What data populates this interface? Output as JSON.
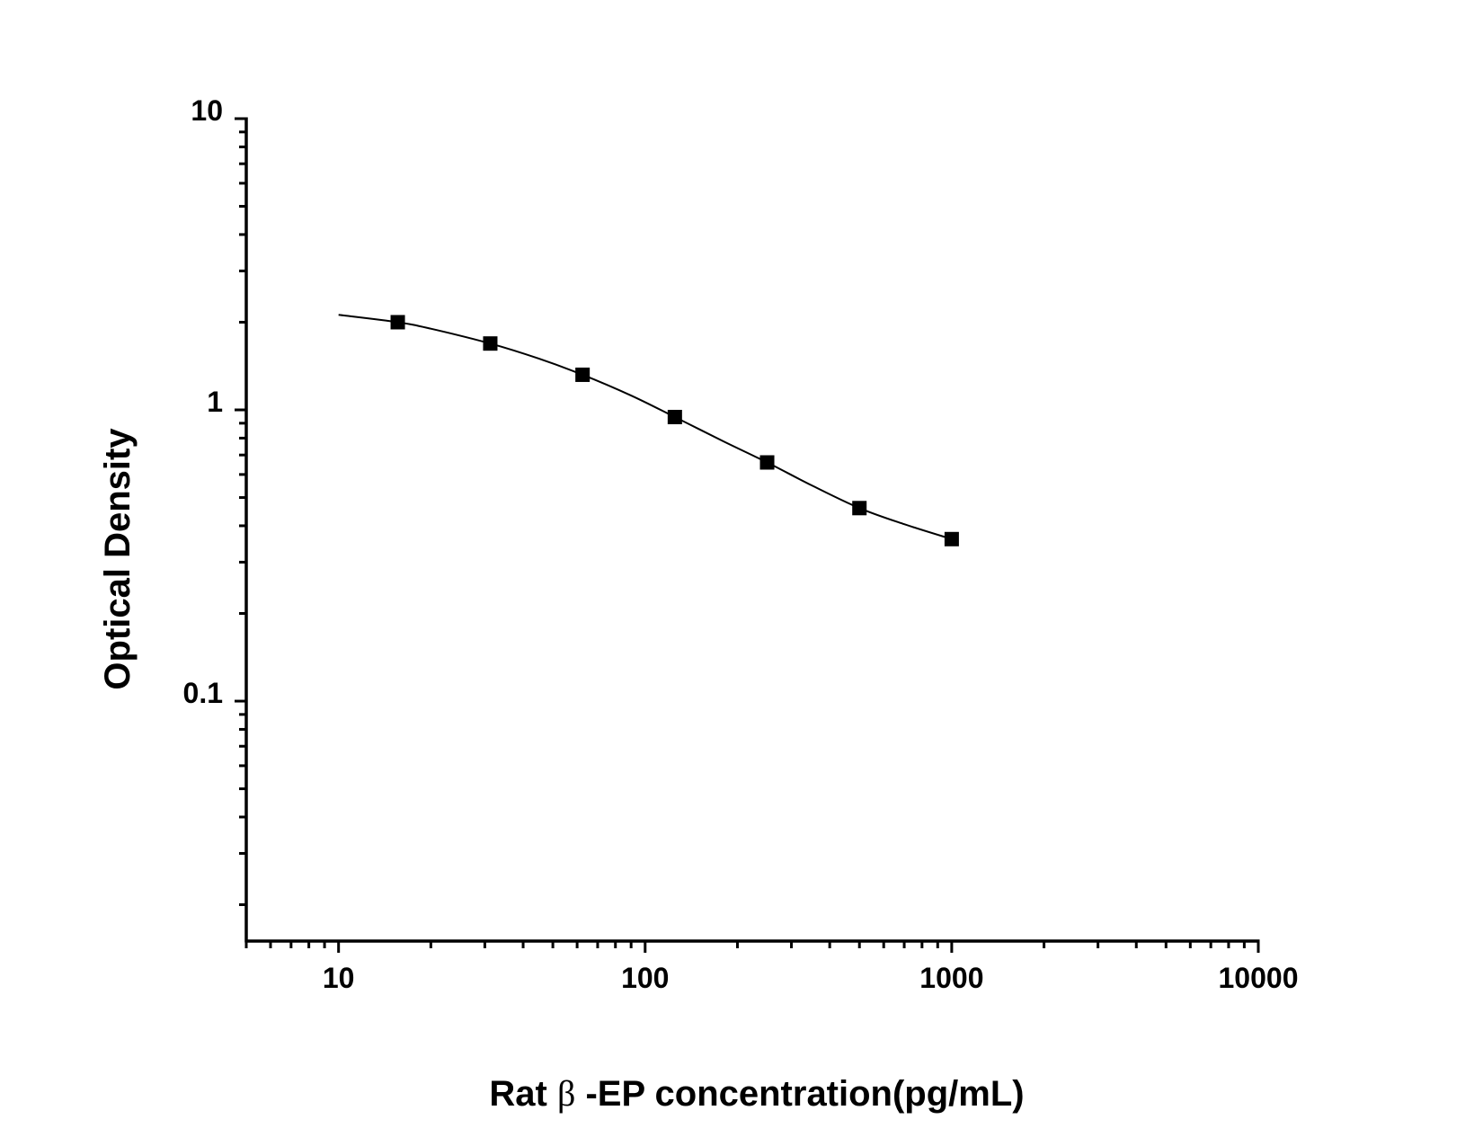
{
  "chart_data": {
    "type": "scatter",
    "title": "",
    "xlabel": "Rat β -EP concentration(pg/mL)",
    "xlabel_parts": {
      "prefix": "Rat ",
      "symbol": "β",
      "suffix": " -EP concentration(pg/mL)"
    },
    "ylabel": "Optical Density",
    "xscale": "log",
    "yscale": "log",
    "xlim": [
      5,
      10000
    ],
    "ylim": [
      0.015,
      10
    ],
    "x_ticks": [
      10,
      100,
      1000,
      10000
    ],
    "x_tick_labels": [
      "10",
      "100",
      "1000",
      "10000"
    ],
    "y_ticks": [
      0.1,
      1,
      10
    ],
    "y_tick_labels": [
      "0.1",
      "1",
      "10"
    ],
    "grid": false,
    "legend": null,
    "series": [
      {
        "name": "Standard points",
        "marker": "square",
        "color": "#000000",
        "x": [
          15.6,
          31.25,
          62.5,
          125,
          250,
          500,
          1000
        ],
        "y": [
          2.0,
          1.69,
          1.32,
          0.945,
          0.66,
          0.46,
          0.36
        ]
      },
      {
        "name": "Fitted curve",
        "style": "line",
        "color": "#000000",
        "x": [
          10,
          15.6,
          20,
          31.25,
          45,
          62.5,
          90,
          125,
          180,
          250,
          350,
          500,
          700,
          1000
        ],
        "y": [
          2.12,
          2.0,
          1.9,
          1.69,
          1.5,
          1.32,
          1.12,
          0.945,
          0.78,
          0.66,
          0.55,
          0.46,
          0.405,
          0.36
        ]
      }
    ]
  }
}
